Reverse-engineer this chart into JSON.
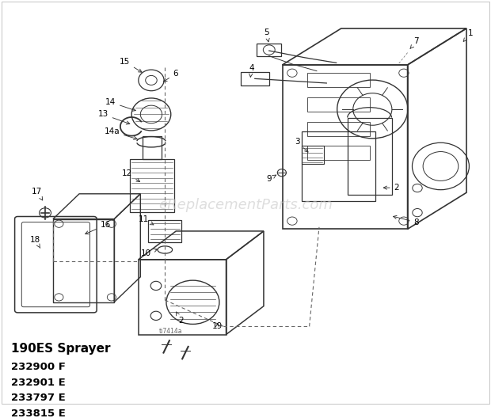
{
  "title": "190ES Sprayer",
  "model_numbers": [
    "232900 F",
    "232901 E",
    "233797 E",
    "233815 E"
  ],
  "watermark": "eReplacementParts.com",
  "figure_id": "ti7414a",
  "background_color": "#ffffff",
  "text_color": "#000000",
  "diagram_color": "#333333",
  "figsize": [
    6.2,
    5.28
  ],
  "dpi": 100
}
